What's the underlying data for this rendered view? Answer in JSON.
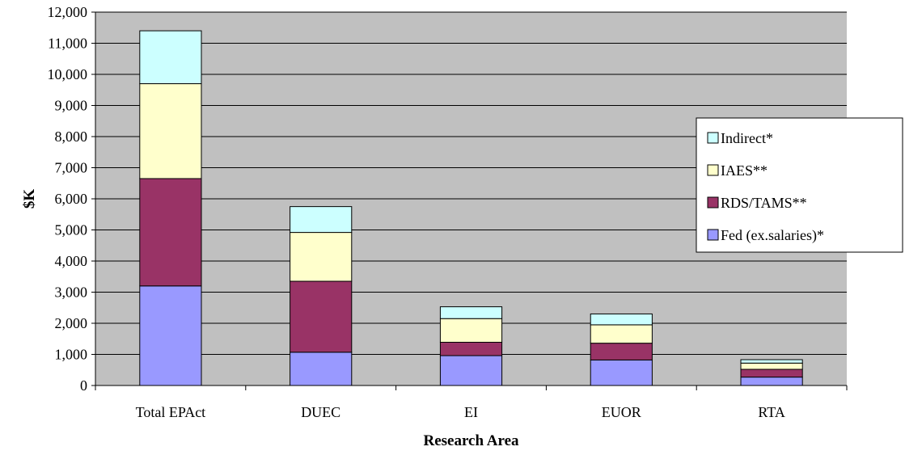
{
  "chart_data": {
    "type": "bar",
    "stacked": true,
    "xlabel": "Research Area",
    "ylabel": "$K",
    "ylim": [
      0,
      12000
    ],
    "ytick_step": 1000,
    "yticks": [
      "0",
      "1,000",
      "2,000",
      "3,000",
      "4,000",
      "5,000",
      "6,000",
      "7,000",
      "8,000",
      "9,000",
      "10,000",
      "11,000",
      "12,000"
    ],
    "grid": true,
    "legend_position": "right",
    "categories": [
      "Total EPAct",
      "DUEC",
      "EI",
      "EUOR",
      "RTA"
    ],
    "series": [
      {
        "name": "Fed (ex.salaries)*",
        "color": "#9999ff",
        "values": [
          3200,
          1070,
          960,
          820,
          270
        ]
      },
      {
        "name": "RDS/TAMS**",
        "color": "#993366",
        "values": [
          3450,
          2280,
          430,
          540,
          250
        ]
      },
      {
        "name": "IAES**",
        "color": "#ffffcc",
        "values": [
          3050,
          1570,
          760,
          590,
          200
        ]
      },
      {
        "name": "Indirect*",
        "color": "#ccffff",
        "values": [
          1700,
          830,
          380,
          350,
          110
        ]
      }
    ],
    "plot_background": "#c0c0c0"
  }
}
